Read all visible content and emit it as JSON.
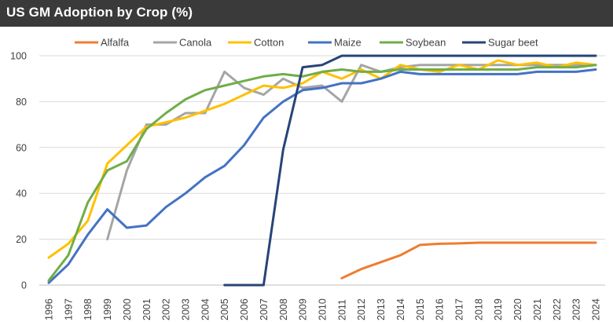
{
  "chart_data": {
    "type": "line",
    "title": "US GM Adoption by Crop (%)",
    "xlabel": "",
    "ylabel": "",
    "ylim": [
      0,
      100
    ],
    "yticks": [
      0,
      20,
      40,
      60,
      80,
      100
    ],
    "grid": true,
    "legend_position": "top",
    "x": [
      "1996",
      "1997",
      "1998",
      "1999",
      "2000",
      "2001",
      "2002",
      "2003",
      "2004",
      "2005",
      "2006",
      "2007",
      "2008",
      "2009",
      "2010",
      "2011",
      "2012",
      "2013",
      "2014",
      "2015",
      "2016",
      "2017",
      "2018",
      "2019",
      "2020",
      "2021",
      "2022",
      "2023",
      "2024"
    ],
    "series": [
      {
        "name": "Alfalfa",
        "color": "#ED7D31",
        "values": [
          null,
          null,
          null,
          null,
          null,
          null,
          null,
          null,
          null,
          null,
          null,
          null,
          null,
          null,
          null,
          3,
          7,
          10,
          13,
          17.5,
          18,
          18.2,
          18.5,
          18.5,
          18.5,
          18.5,
          18.5,
          18.5,
          18.5
        ]
      },
      {
        "name": "Canola",
        "color": "#A5A5A5",
        "values": [
          null,
          null,
          null,
          20,
          50,
          70,
          70,
          75,
          75,
          93,
          86,
          83,
          90,
          86,
          87,
          80,
          96,
          93,
          95,
          96,
          96,
          96,
          96,
          96,
          96,
          96,
          96,
          96,
          96
        ]
      },
      {
        "name": "Cotton",
        "color": "#FFC000",
        "values": [
          12,
          18,
          28,
          53,
          61,
          69,
          71,
          73,
          76,
          79,
          83,
          87,
          86,
          88,
          93,
          90,
          94,
          90,
          96,
          94,
          93,
          96,
          94,
          98,
          96,
          97,
          95,
          97,
          96
        ]
      },
      {
        "name": "Maize",
        "color": "#4472C4",
        "values": [
          1,
          9,
          22,
          33,
          25,
          26,
          34,
          40,
          47,
          52,
          61,
          73,
          80,
          85,
          86,
          88,
          88,
          90,
          93,
          92,
          92,
          92,
          92,
          92,
          92,
          93,
          93,
          93,
          94
        ]
      },
      {
        "name": "Soybean",
        "color": "#70AD47",
        "values": [
          2,
          13,
          36,
          50,
          54,
          68,
          75,
          81,
          85,
          87,
          89,
          91,
          92,
          91,
          93,
          94,
          93,
          93,
          94,
          94,
          94,
          94,
          94,
          94,
          94,
          95,
          95,
          95,
          96
        ]
      },
      {
        "name": "Sugar beet",
        "color": "#264478",
        "values": [
          null,
          null,
          null,
          null,
          null,
          null,
          null,
          null,
          null,
          0,
          0,
          0,
          59,
          95,
          96,
          100,
          100,
          100,
          100,
          100,
          100,
          100,
          100,
          100,
          100,
          100,
          100,
          100,
          100
        ]
      }
    ]
  }
}
